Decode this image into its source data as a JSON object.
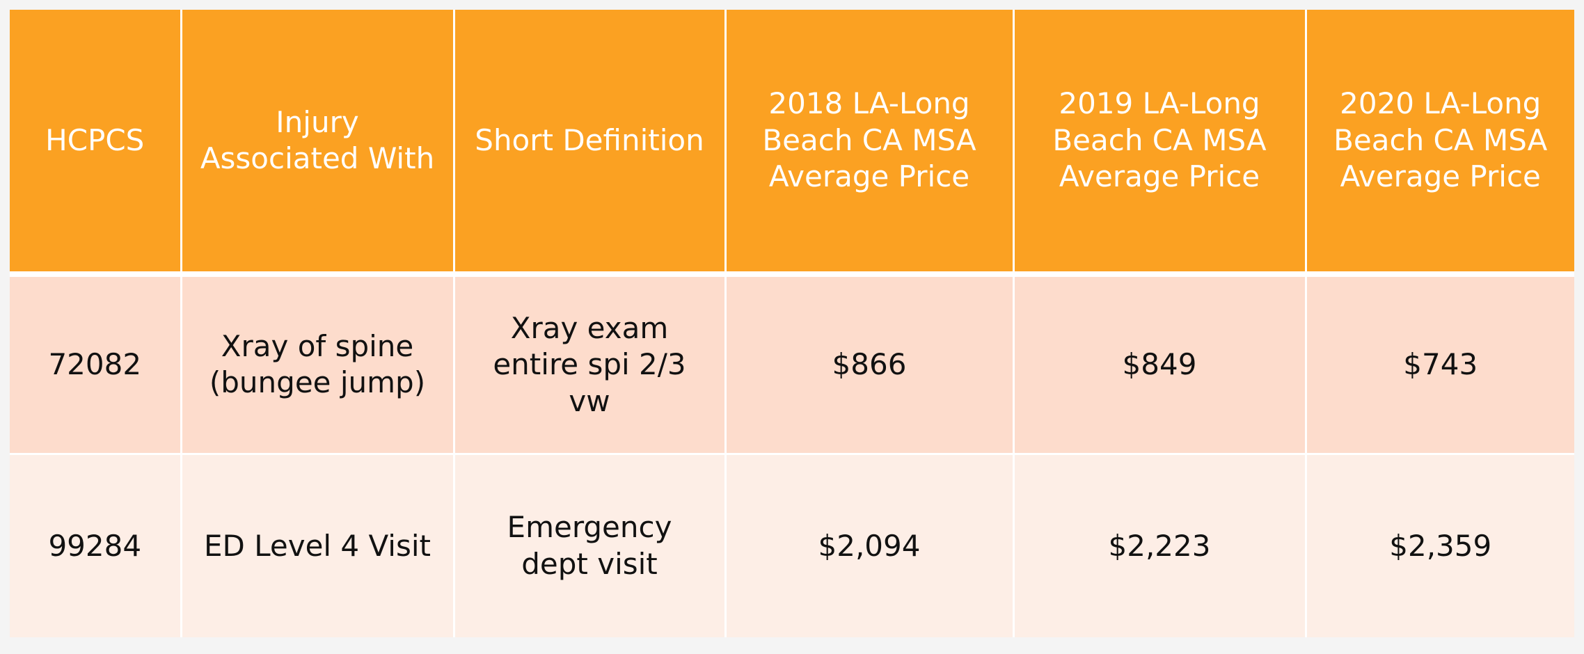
{
  "table": {
    "headers": [
      "HCPCS",
      "Injury Associated With",
      "Short Definition",
      "2018 LA-Long Beach CA MSA Average Price",
      "2019 LA-Long Beach CA MSA Average Price",
      "2020 LA-Long Beach CA MSA Average Price"
    ],
    "rows": [
      [
        "72082",
        "Xray of spine (bungee jump)",
        "Xray exam entire spi 2/3 vw",
        "$866",
        "$849",
        "$743"
      ],
      [
        "99284",
        "ED Level 4 Visit",
        "Emergency dept visit",
        "$2,094",
        "$2,223",
        "$2,359"
      ]
    ]
  },
  "colors": {
    "header_background": "#fba122",
    "header_text": "#ffffff",
    "row_odd_background": "#fddccc",
    "row_even_background": "#fdeee6"
  }
}
